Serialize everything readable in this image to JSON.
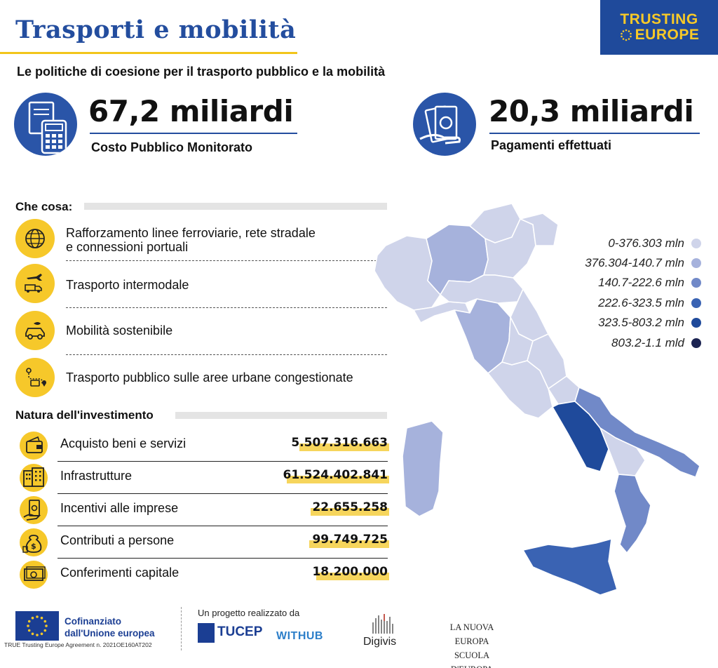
{
  "header": {
    "title": "Trasporti e mobilità",
    "brand_line1": "TRUSTING",
    "brand_line2": "EUROPE",
    "subtitle": "Le politiche di coesione per il trasporto pubblico e la mobilità"
  },
  "kpis": [
    {
      "value": "67,2 miliardi",
      "label": "Costo Pubblico Monitorato",
      "icon": "calculator-document-icon"
    },
    {
      "value": "20,3 miliardi",
      "label": "Pagamenti effettuati",
      "icon": "banknotes-hand-icon"
    }
  ],
  "what": {
    "heading": "Che cosa:",
    "items": [
      {
        "label_line1": "Rafforzamento linee ferroviarie, rete stradale",
        "label_line2": "e connessioni portuali",
        "icon": "globe-network-icon"
      },
      {
        "label": "Trasporto intermodale",
        "icon": "plane-ship-truck-icon"
      },
      {
        "label": "Mobilità sostenibile",
        "icon": "eco-car-icon"
      },
      {
        "label": "Trasporto pubblico sulle aree urbane congestionate",
        "icon": "route-bus-icon"
      }
    ]
  },
  "investment": {
    "heading": "Natura dell'investimento",
    "rows": [
      {
        "label": "Acquisto beni e servizi",
        "value": "5.507.316.663",
        "icon": "wallet-icon"
      },
      {
        "label": "Infrastrutture",
        "value": "61.524.402.841",
        "icon": "buildings-icon"
      },
      {
        "label": "Incentivi alle imprese",
        "value": "22.655.258",
        "icon": "banknote-hand-icon"
      },
      {
        "label": "Contributi a persone",
        "value": "99.749.725",
        "icon": "money-bag-icon"
      },
      {
        "label": "Conferimenti capitale",
        "value": "18.200.000",
        "icon": "cash-stack-icon"
      }
    ]
  },
  "legend": [
    {
      "label": "0-376.303 mln",
      "color": "#cfd4ea"
    },
    {
      "label": "376.304-140.7 mln",
      "color": "#a6b2dc"
    },
    {
      "label": "140.7-222.6 mln",
      "color": "#7189c8"
    },
    {
      "label": "222.6-323.5 mln",
      "color": "#3a63b3"
    },
    {
      "label": "323.5-803.2 mln",
      "color": "#1f4a9b"
    },
    {
      "label": "803.2-1.1 mld",
      "color": "#1c2452"
    }
  ],
  "footer": {
    "cofin_line1": "Cofinanziato",
    "cofin_line2": "dall'Unione europea",
    "agreement": "TRUE Trusting Europe Agreement n. 2021OE160AT202",
    "progetto": "Un progetto realizzato da",
    "tucep": "TUCEP",
    "withub": "WITHUB",
    "digivis": "Digivis",
    "lne_line1": "LA NUOVA EUROPA",
    "lne_line2": "SCUOLA D'EUROPA"
  },
  "colors": {
    "primary": "#234d9e",
    "accent_yellow": "#f6c82a"
  }
}
